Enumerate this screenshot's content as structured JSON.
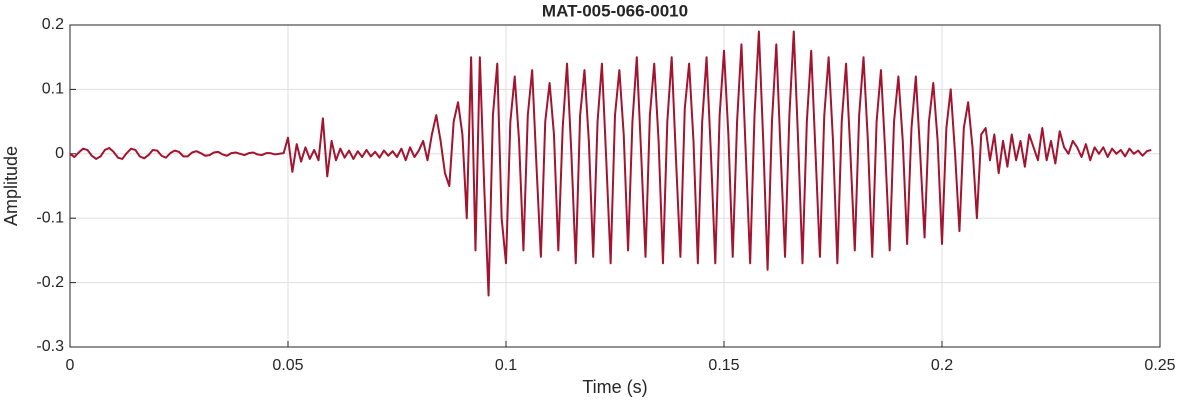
{
  "chart_data": {
    "type": "line",
    "title": "MAT-005-066-0010",
    "x_label": "Time (s)",
    "y_label": "Amplitude",
    "xlim": [
      0,
      0.25
    ],
    "ylim": [
      -0.3,
      0.2
    ],
    "xticks": [
      0,
      0.05,
      0.1,
      0.15,
      0.2,
      0.25
    ],
    "yticks": [
      -0.3,
      -0.2,
      -0.1,
      0,
      0.1,
      0.2
    ],
    "grid": true,
    "x": [
      0,
      0.001,
      0.002,
      0.003,
      0.004,
      0.005,
      0.006,
      0.007,
      0.008,
      0.009,
      0.01,
      0.011,
      0.012,
      0.013,
      0.014,
      0.015,
      0.016,
      0.017,
      0.018,
      0.019,
      0.02,
      0.021,
      0.022,
      0.023,
      0.024,
      0.025,
      0.026,
      0.027,
      0.028,
      0.029,
      0.03,
      0.031,
      0.032,
      0.033,
      0.034,
      0.035,
      0.036,
      0.037,
      0.038,
      0.039,
      0.04,
      0.041,
      0.042,
      0.043,
      0.044,
      0.045,
      0.046,
      0.047,
      0.048,
      0.049,
      0.05,
      0.051,
      0.052,
      0.053,
      0.054,
      0.055,
      0.056,
      0.057,
      0.058,
      0.059,
      0.06,
      0.061,
      0.062,
      0.063,
      0.064,
      0.065,
      0.066,
      0.067,
      0.068,
      0.069,
      0.07,
      0.071,
      0.072,
      0.073,
      0.074,
      0.075,
      0.076,
      0.077,
      0.078,
      0.079,
      0.08,
      0.081,
      0.082,
      0.083,
      0.084,
      0.085,
      0.086,
      0.087,
      0.088,
      0.089,
      0.09,
      0.091,
      0.092,
      0.093,
      0.094,
      0.095,
      0.096,
      0.097,
      0.098,
      0.099,
      0.1,
      0.101,
      0.102,
      0.103,
      0.104,
      0.105,
      0.106,
      0.107,
      0.108,
      0.109,
      0.11,
      0.111,
      0.112,
      0.113,
      0.114,
      0.115,
      0.116,
      0.117,
      0.118,
      0.119,
      0.12,
      0.121,
      0.122,
      0.123,
      0.124,
      0.125,
      0.126,
      0.127,
      0.128,
      0.129,
      0.13,
      0.131,
      0.132,
      0.133,
      0.134,
      0.135,
      0.136,
      0.137,
      0.138,
      0.139,
      0.14,
      0.141,
      0.142,
      0.143,
      0.144,
      0.145,
      0.146,
      0.147,
      0.148,
      0.149,
      0.15,
      0.151,
      0.152,
      0.153,
      0.154,
      0.155,
      0.156,
      0.157,
      0.158,
      0.159,
      0.16,
      0.161,
      0.162,
      0.163,
      0.164,
      0.165,
      0.166,
      0.167,
      0.168,
      0.169,
      0.17,
      0.171,
      0.172,
      0.173,
      0.174,
      0.175,
      0.176,
      0.177,
      0.178,
      0.179,
      0.18,
      0.181,
      0.182,
      0.183,
      0.184,
      0.185,
      0.186,
      0.187,
      0.188,
      0.189,
      0.19,
      0.191,
      0.192,
      0.193,
      0.194,
      0.195,
      0.196,
      0.197,
      0.198,
      0.199,
      0.2,
      0.201,
      0.202,
      0.203,
      0.204,
      0.205,
      0.206,
      0.207,
      0.208,
      0.209,
      0.21,
      0.211,
      0.212,
      0.213,
      0.214,
      0.215,
      0.216,
      0.217,
      0.218,
      0.219,
      0.22,
      0.221,
      0.222,
      0.223,
      0.224,
      0.225,
      0.226,
      0.227,
      0.228,
      0.229,
      0.23,
      0.231,
      0.232,
      0.233,
      0.234,
      0.235,
      0.236,
      0.237,
      0.238,
      0.239,
      0.24,
      0.241,
      0.242,
      0.243,
      0.244,
      0.245,
      0.246,
      0.247,
      0.248
    ],
    "series": [
      {
        "color": "#a2142f",
        "values": [
          0,
          -0.005,
          0.002,
          0.008,
          0.006,
          -0.003,
          -0.008,
          -0.004,
          0.006,
          0.009,
          0.003,
          -0.006,
          -0.008,
          0.001,
          0.008,
          0.006,
          -0.004,
          -0.007,
          -0.002,
          0.006,
          0.005,
          -0.003,
          -0.006,
          0.001,
          0.005,
          0.003,
          -0.004,
          -0.004,
          0.002,
          0.004,
          0.001,
          -0.003,
          -0.002,
          0.002,
          0.003,
          -0.001,
          -0.003,
          0.001,
          0.002,
          0,
          -0.002,
          0.001,
          0.002,
          -0.001,
          -0.002,
          0.001,
          0.001,
          -0.001,
          0,
          0.001,
          0.025,
          -0.028,
          0.015,
          -0.012,
          0.01,
          -0.008,
          0.006,
          -0.01,
          0.055,
          -0.035,
          0.02,
          -0.01,
          0.008,
          -0.006,
          0.005,
          -0.008,
          0.004,
          -0.005,
          0.006,
          -0.004,
          0.003,
          -0.006,
          0.005,
          -0.003,
          0.004,
          -0.005,
          0.008,
          -0.01,
          0.01,
          -0.005,
          0.005,
          0.02,
          -0.01,
          0.03,
          0.06,
          0.02,
          -0.03,
          -0.05,
          0.05,
          0.08,
          0.03,
          -0.1,
          0.15,
          -0.15,
          0.15,
          -0.05,
          -0.22,
          0.06,
          0.14,
          -0.1,
          -0.17,
          0.05,
          0.12,
          0.02,
          -0.15,
          0.06,
          0.13,
          -0.02,
          -0.16,
          0.05,
          0.11,
          0.03,
          -0.15,
          0.04,
          0.14,
          0,
          -0.17,
          0.06,
          0.13,
          0.02,
          -0.16,
          0.05,
          0.14,
          -0.01,
          -0.17,
          0.06,
          0.13,
          0.03,
          -0.15,
          0.05,
          0.15,
          0,
          -0.16,
          0.06,
          0.14,
          0.02,
          -0.17,
          0.05,
          0.15,
          -0.01,
          -0.16,
          0.07,
          0.14,
          0.02,
          -0.17,
          0.05,
          0.15,
          0,
          -0.17,
          0.06,
          0.16,
          0.03,
          -0.16,
          0.05,
          0.17,
          0,
          -0.17,
          0.06,
          0.19,
          0.02,
          -0.18,
          0.05,
          0.17,
          0,
          -0.16,
          0.06,
          0.19,
          0.02,
          -0.17,
          0.05,
          0.16,
          0,
          -0.16,
          0.06,
          0.15,
          0.02,
          -0.17,
          0.05,
          0.14,
          0,
          -0.15,
          0.06,
          0.15,
          0.02,
          -0.16,
          0.05,
          0.13,
          0,
          -0.15,
          0.05,
          0.12,
          0.02,
          -0.14,
          0.04,
          0.12,
          0,
          -0.13,
          0.05,
          0.11,
          0.02,
          -0.14,
          0.04,
          0.1,
          0,
          -0.12,
          0.04,
          0.08,
          0.01,
          -0.1,
          0.03,
          0.04,
          -0.01,
          0.03,
          -0.03,
          0.02,
          -0.02,
          0.03,
          -0.01,
          0.02,
          -0.02,
          0.03,
          0.01,
          -0.01,
          0.04,
          -0.01,
          0.02,
          -0.015,
          0.035,
          0.01,
          0,
          0.02,
          0.01,
          -0.005,
          0.015,
          -0.01,
          0.01,
          0,
          0.01,
          -0.005,
          0.008,
          0,
          0.006,
          -0.004,
          0.008,
          0,
          0.005,
          -0.003,
          0.004,
          0.006
        ]
      }
    ]
  }
}
